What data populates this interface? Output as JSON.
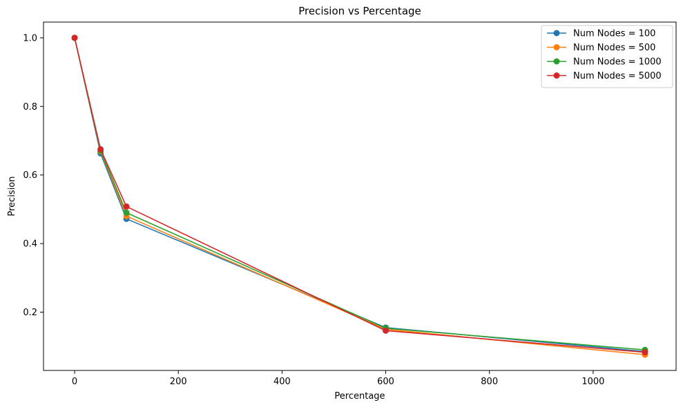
{
  "chart_data": {
    "type": "line",
    "title": "Precision vs Percentage",
    "xlabel": "Percentage",
    "ylabel": "Precision",
    "xlim": [
      -60,
      1160
    ],
    "ylim": [
      0.03,
      1.046
    ],
    "xticks": [
      0,
      200,
      400,
      600,
      800,
      1000
    ],
    "yticks": [
      0.2,
      0.4,
      0.6,
      0.8,
      1.0
    ],
    "xtick_labels": [
      "0",
      "200",
      "400",
      "600",
      "800",
      "1000"
    ],
    "ytick_labels": [
      "0.2",
      "0.4",
      "0.6",
      "0.8",
      "1.0"
    ],
    "grid": false,
    "legend_position": "top-right",
    "marker": "circle",
    "x": [
      0,
      50,
      100,
      600,
      1100
    ],
    "series": [
      {
        "name": "Num Nodes = 100",
        "color": "#1f77b4",
        "values": [
          1.0,
          0.663,
          0.472,
          0.155,
          0.085
        ]
      },
      {
        "name": "Num Nodes = 500",
        "color": "#ff7f0e",
        "values": [
          1.0,
          0.669,
          0.48,
          0.15,
          0.076
        ]
      },
      {
        "name": "Num Nodes = 1000",
        "color": "#2ca02c",
        "values": [
          1.0,
          0.671,
          0.49,
          0.153,
          0.09
        ]
      },
      {
        "name": "Num Nodes = 5000",
        "color": "#d62728",
        "values": [
          1.0,
          0.675,
          0.508,
          0.146,
          0.083
        ]
      }
    ]
  }
}
